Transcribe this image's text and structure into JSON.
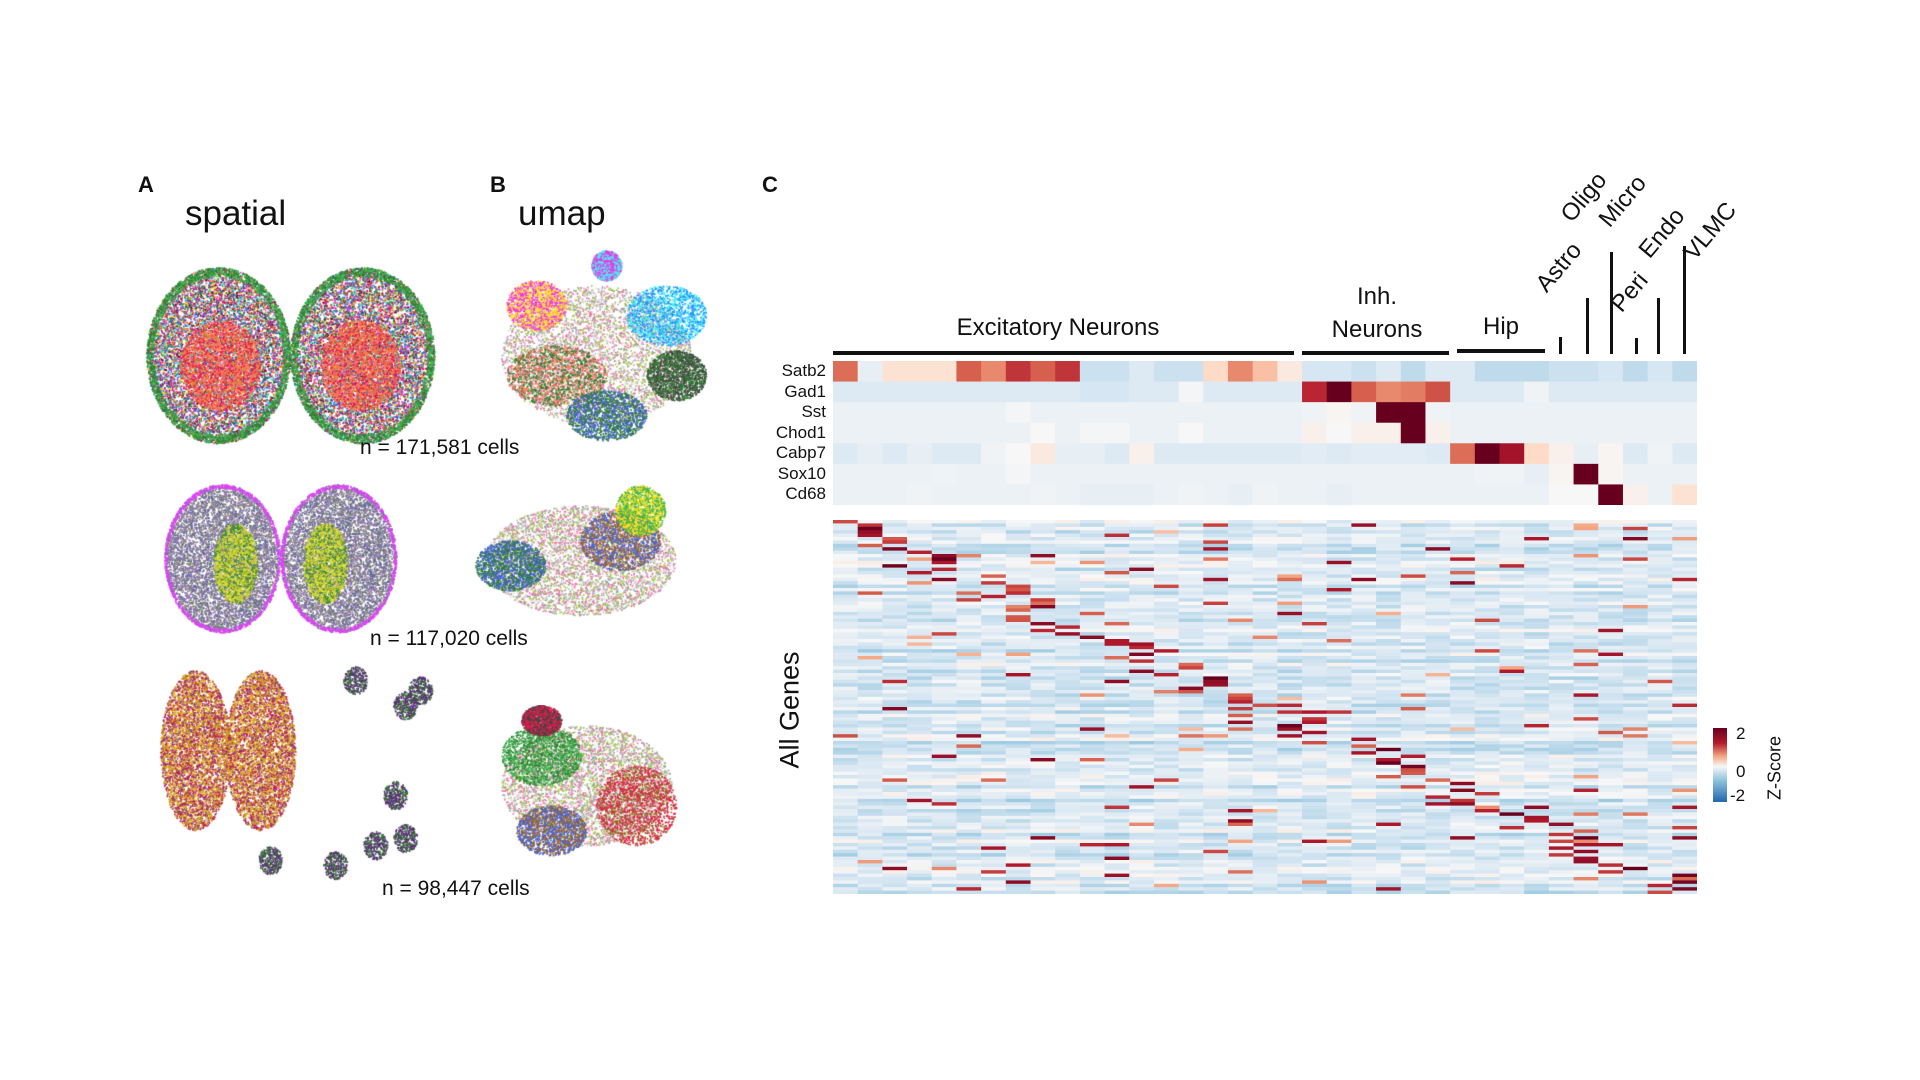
{
  "panels": {
    "A": {
      "letter": "A",
      "title": "spatial",
      "counts": [
        "n = 171,581 cells",
        "n = 117,020 cells",
        "n = 98,447 cells"
      ]
    },
    "B": {
      "letter": "B",
      "title": "umap"
    },
    "C": {
      "letter": "C",
      "ylabel": "All Genes"
    }
  },
  "chart_data": {
    "type": "heatmap",
    "title": "",
    "groups": [
      {
        "label": "Excitatory Neurons",
        "columns": 19
      },
      {
        "label_lines": [
          "Inh.",
          "Neurons"
        ],
        "columns": 6
      },
      {
        "label": "Hip",
        "columns": 4
      },
      {
        "label": "Astro",
        "columns": 1
      },
      {
        "label": "Oligo",
        "columns": 1
      },
      {
        "label": "Micro",
        "columns": 1
      },
      {
        "label": "Peri",
        "columns": 1
      },
      {
        "label": "Endo",
        "columns": 1
      },
      {
        "label": "VLMC",
        "columns": 1
      }
    ],
    "marker_genes": [
      "Satb2",
      "Gad1",
      "Sst",
      "Chod1",
      "Cabp7",
      "Sox10",
      "Cd68"
    ],
    "marker_values": [
      [
        1.2,
        -0.2,
        0.3,
        0.3,
        0.3,
        1.3,
        1.0,
        1.6,
        1.3,
        1.6,
        -0.5,
        -0.5,
        -0.3,
        -0.5,
        -0.5,
        0.4,
        1.0,
        0.6,
        0.2,
        -0.4,
        -0.4,
        -0.5,
        -0.3,
        -0.6,
        -0.3,
        -0.3,
        -0.6,
        -0.6,
        -0.6,
        -0.5,
        -0.5,
        -0.4,
        -0.6,
        -0.4,
        -0.6
      ],
      [
        -0.3,
        -0.3,
        -0.3,
        -0.3,
        -0.3,
        -0.3,
        -0.3,
        -0.3,
        -0.3,
        -0.3,
        -0.4,
        -0.4,
        -0.3,
        -0.3,
        -0.05,
        -0.3,
        -0.3,
        -0.3,
        -0.3,
        1.7,
        2.5,
        1.3,
        1.0,
        1.1,
        1.4,
        -0.3,
        -0.3,
        -0.3,
        -0.1,
        -0.3,
        -0.3,
        -0.3,
        -0.3,
        -0.3,
        -0.3
      ],
      [
        -0.15,
        -0.15,
        -0.15,
        -0.15,
        -0.15,
        -0.15,
        -0.15,
        -0.05,
        -0.15,
        -0.15,
        -0.15,
        -0.15,
        -0.15,
        -0.15,
        -0.15,
        -0.15,
        -0.15,
        -0.15,
        -0.15,
        -0.1,
        0.05,
        -0.1,
        2.5,
        2.5,
        -0.1,
        -0.15,
        -0.15,
        -0.15,
        -0.15,
        -0.15,
        -0.15,
        -0.15,
        -0.15,
        -0.15,
        -0.15
      ],
      [
        -0.15,
        -0.15,
        -0.15,
        -0.15,
        -0.15,
        -0.15,
        -0.15,
        -0.15,
        0.0,
        -0.15,
        -0.05,
        -0.05,
        -0.15,
        -0.15,
        0.0,
        -0.15,
        -0.15,
        -0.15,
        -0.15,
        0.1,
        0.0,
        0.1,
        0.1,
        2.5,
        0.1,
        -0.15,
        -0.15,
        -0.15,
        -0.15,
        -0.15,
        -0.15,
        -0.15,
        -0.15,
        -0.15,
        -0.15
      ],
      [
        -0.3,
        -0.2,
        -0.3,
        -0.2,
        -0.3,
        -0.3,
        -0.1,
        0.0,
        0.2,
        -0.2,
        -0.2,
        -0.3,
        0.1,
        -0.3,
        -0.3,
        -0.3,
        -0.3,
        -0.3,
        -0.3,
        -0.25,
        -0.3,
        -0.25,
        -0.25,
        -0.25,
        -0.3,
        1.2,
        2.5,
        1.9,
        0.4,
        0.1,
        -0.2,
        0.05,
        -0.3,
        -0.1,
        -0.3
      ],
      [
        -0.15,
        -0.15,
        -0.15,
        -0.15,
        -0.1,
        -0.15,
        -0.15,
        -0.05,
        -0.15,
        -0.15,
        -0.15,
        -0.15,
        -0.15,
        -0.15,
        -0.15,
        -0.15,
        -0.15,
        -0.15,
        -0.15,
        -0.15,
        -0.15,
        -0.15,
        -0.15,
        -0.15,
        -0.15,
        -0.15,
        -0.1,
        -0.1,
        -0.2,
        0.05,
        2.5,
        0.05,
        -0.15,
        -0.15,
        -0.15
      ],
      [
        -0.15,
        -0.15,
        -0.15,
        -0.1,
        -0.15,
        -0.15,
        -0.15,
        -0.15,
        -0.1,
        -0.15,
        -0.2,
        -0.2,
        -0.2,
        -0.15,
        -0.1,
        -0.15,
        -0.2,
        -0.1,
        -0.15,
        -0.15,
        -0.2,
        -0.15,
        -0.15,
        -0.15,
        -0.15,
        -0.15,
        -0.15,
        -0.15,
        -0.15,
        0.0,
        0.0,
        2.5,
        0.1,
        -0.15,
        0.3
      ]
    ],
    "all_genes_rows": 110,
    "legend": {
      "title": "Z-Score",
      "ticks": [
        "2",
        "0",
        "-2"
      ],
      "range": [
        -2,
        2
      ]
    },
    "colors": {
      "low": "#2166ac",
      "mid": "#f7f7f7",
      "high": "#67001f"
    }
  }
}
